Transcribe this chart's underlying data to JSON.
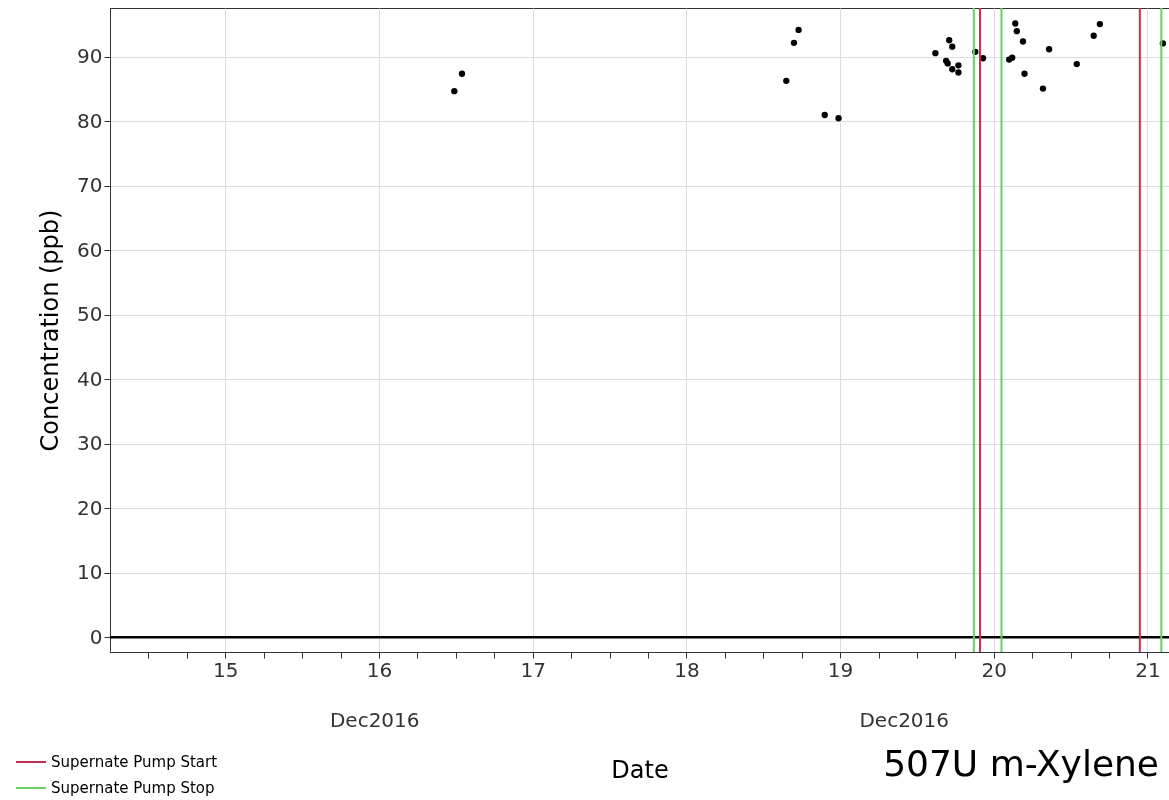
{
  "chart_data": {
    "type": "scatter",
    "title": "507U m-Xylene",
    "xlabel": "Date",
    "ylabel": "Concentration (ppb)",
    "annotations": [
      "Dec2016",
      "Dec2016"
    ],
    "x": [
      16.49,
      16.54,
      18.65,
      18.7,
      18.73,
      18.9,
      18.99,
      19.62,
      19.71,
      19.73,
      19.69,
      19.7,
      19.73,
      19.77,
      19.77,
      19.88,
      19.93,
      20.14,
      20.15,
      20.19,
      20.1,
      20.12,
      20.2,
      20.32,
      20.36,
      20.54,
      20.65,
      20.69,
      21.1
    ],
    "series": [
      {
        "color": "#000000",
        "values": [
          84.7,
          87.4,
          86.3,
          92.2,
          94.2,
          81.0,
          80.5,
          90.6,
          92.6,
          91.6,
          89.4,
          89.0,
          88.1,
          88.7,
          87.6,
          90.8,
          89.8,
          95.2,
          94.0,
          92.4,
          89.6,
          89.9,
          87.4,
          85.1,
          91.2,
          88.9,
          93.3,
          95.1,
          92.1
        ]
      }
    ],
    "xlim": [
      14.25,
      21.14
    ],
    "xticks": [
      {
        "value": 14.5,
        "label": null
      },
      {
        "value": 14.75,
        "label": null
      },
      15,
      {
        "value": 15.25,
        "label": null
      },
      {
        "value": 15.5,
        "label": null
      },
      {
        "value": 15.75,
        "label": null
      },
      16,
      {
        "value": 16.25,
        "label": null
      },
      {
        "value": 16.5,
        "label": null
      },
      {
        "value": 16.75,
        "label": null
      },
      17,
      {
        "value": 17.25,
        "label": null
      },
      {
        "value": 17.5,
        "label": null
      },
      {
        "value": 17.75,
        "label": null
      },
      18,
      {
        "value": 18.25,
        "label": null
      },
      {
        "value": 18.5,
        "label": null
      },
      {
        "value": 18.75,
        "label": null
      },
      19,
      {
        "value": 19.25,
        "label": null
      },
      {
        "value": 19.5,
        "label": null
      },
      {
        "value": 19.75,
        "label": null
      },
      20,
      {
        "value": 20.25,
        "label": null
      },
      {
        "value": 20.5,
        "label": null
      },
      {
        "value": 20.75,
        "label": null
      },
      21
    ],
    "ylim": [
      -2.3,
      97.6
    ],
    "yticks": [
      0,
      10,
      20,
      30,
      40,
      50,
      60,
      70,
      80,
      90
    ],
    "ref_lines": [
      {
        "axis": "y",
        "value": 0,
        "color": "#000000"
      },
      {
        "axis": "x",
        "value": 19.87,
        "label": "Supernate Pump Stop",
        "color": "#66d066"
      },
      {
        "axis": "x",
        "value": 19.91,
        "label": "Supernate Pump Start",
        "color": "#c0304a"
      },
      {
        "axis": "x",
        "value": 20.05,
        "color": "#66d066"
      },
      {
        "axis": "x",
        "value": 20.95,
        "color": "#c0304a"
      },
      {
        "axis": "x",
        "value": 21.09,
        "color": "#66d066"
      }
    ],
    "grid": true,
    "marker": "circle",
    "legend": "bottom left"
  }
}
